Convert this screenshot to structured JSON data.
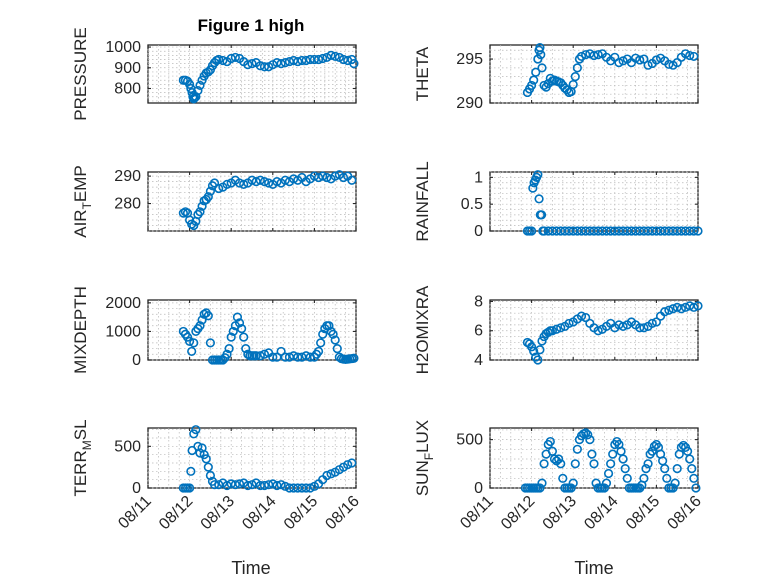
{
  "figure": {
    "title": "Figure 1 high"
  },
  "chart_data": [
    {
      "type": "scatter",
      "ylabel": {
        "main": "PRESSURE",
        "sub": ""
      },
      "ylim": [
        730,
        1010
      ],
      "yticks": [
        800,
        900,
        1000
      ],
      "xlim": [
        "08/11",
        "08/16"
      ],
      "xticks": [
        "08/11",
        "08/12",
        "08/13",
        "08/14",
        "08/15",
        "08/16"
      ],
      "grid": true,
      "x": [
        11.85,
        11.9,
        11.95,
        12.0,
        12.03,
        12.06,
        12.08,
        12.1,
        12.12,
        12.15,
        12.2,
        12.25,
        12.3,
        12.35,
        12.4,
        12.45,
        12.5,
        12.55,
        12.6,
        12.65,
        12.7,
        12.8,
        12.9,
        13.0,
        13.1,
        13.2,
        13.3,
        13.4,
        13.5,
        13.6,
        13.7,
        13.8,
        13.9,
        14.0,
        14.1,
        14.2,
        14.3,
        14.4,
        14.5,
        14.6,
        14.7,
        14.8,
        14.9,
        15.0,
        15.1,
        15.2,
        15.3,
        15.4,
        15.5,
        15.6,
        15.7,
        15.8,
        15.9,
        15.95
      ],
      "y": [
        840,
        840,
        835,
        820,
        800,
        780,
        760,
        750,
        755,
        760,
        790,
        815,
        840,
        860,
        875,
        880,
        890,
        910,
        925,
        935,
        940,
        935,
        930,
        945,
        950,
        945,
        930,
        915,
        920,
        925,
        910,
        905,
        905,
        915,
        925,
        920,
        925,
        930,
        935,
        930,
        935,
        935,
        940,
        940,
        940,
        945,
        950,
        960,
        955,
        950,
        940,
        935,
        940,
        920
      ]
    },
    {
      "type": "scatter",
      "ylabel": {
        "main": "THETA",
        "sub": ""
      },
      "ylim": [
        290,
        296.6
      ],
      "yticks": [
        290,
        295
      ],
      "xlim": [
        "08/11",
        "08/16"
      ],
      "xticks": [
        "08/11",
        "08/12",
        "08/13",
        "08/14",
        "08/15",
        "08/16"
      ],
      "grid": true,
      "x": [
        11.9,
        11.95,
        12.0,
        12.05,
        12.1,
        12.15,
        12.18,
        12.2,
        12.22,
        12.25,
        12.3,
        12.35,
        12.4,
        12.45,
        12.5,
        12.55,
        12.6,
        12.65,
        12.7,
        12.75,
        12.8,
        12.85,
        12.9,
        12.95,
        13.0,
        13.05,
        13.1,
        13.15,
        13.2,
        13.3,
        13.4,
        13.5,
        13.6,
        13.7,
        13.8,
        13.9,
        14.0,
        14.1,
        14.2,
        14.3,
        14.4,
        14.5,
        14.6,
        14.7,
        14.8,
        14.9,
        15.0,
        15.1,
        15.2,
        15.3,
        15.4,
        15.5,
        15.6,
        15.7,
        15.8,
        15.9
      ],
      "y": [
        291.2,
        291.6,
        292,
        292.6,
        293.5,
        295,
        296,
        296.3,
        295.5,
        294,
        292,
        291.8,
        292.2,
        292.8,
        292.5,
        292.6,
        292.5,
        292.4,
        292.3,
        292,
        291.7,
        291.5,
        291.2,
        291.3,
        292.1,
        293,
        294,
        295,
        295.3,
        295.5,
        295.6,
        295.4,
        295.5,
        295.6,
        295.2,
        294.8,
        295.2,
        294.6,
        294.8,
        295,
        294.6,
        295.1,
        294.9,
        295,
        294.3,
        294.5,
        294.9,
        295.1,
        294.8,
        294.4,
        294.3,
        294.6,
        295.2,
        295.6,
        295.4,
        295.3
      ]
    },
    {
      "type": "scatter",
      "ylabel": {
        "main": "AIR",
        "sub": "T",
        "tail": "EMP"
      },
      "ylim": [
        270,
        291.5
      ],
      "yticks": [
        280,
        290
      ],
      "xlim": [
        "08/11",
        "08/16"
      ],
      "xticks": [
        "08/11",
        "08/12",
        "08/13",
        "08/14",
        "08/15",
        "08/16"
      ],
      "grid": true,
      "x": [
        11.85,
        11.9,
        11.95,
        12.0,
        12.05,
        12.1,
        12.15,
        12.2,
        12.25,
        12.3,
        12.35,
        12.4,
        12.45,
        12.5,
        12.55,
        12.6,
        12.7,
        12.8,
        12.9,
        13.0,
        13.1,
        13.2,
        13.3,
        13.4,
        13.5,
        13.6,
        13.7,
        13.8,
        13.9,
        14.0,
        14.1,
        14.2,
        14.3,
        14.4,
        14.5,
        14.6,
        14.7,
        14.8,
        14.9,
        15.0,
        15.1,
        15.2,
        15.3,
        15.4,
        15.5,
        15.6,
        15.7,
        15.8,
        15.9
      ],
      "y": [
        276.5,
        277,
        276.5,
        274,
        272.5,
        272,
        273.5,
        276,
        277,
        279,
        281,
        281.5,
        282.5,
        284.5,
        286.5,
        287.5,
        285.5,
        286,
        287,
        287.5,
        288.5,
        287.5,
        287,
        287.5,
        288.5,
        288,
        288.5,
        288,
        287.5,
        287,
        288,
        287.5,
        288.5,
        288,
        289,
        288.5,
        289.5,
        288,
        289,
        290,
        289.5,
        290,
        289.5,
        289,
        290,
        290.5,
        289.5,
        290,
        288.5
      ]
    },
    {
      "type": "scatter",
      "ylabel": {
        "main": "RAINFALL",
        "sub": ""
      },
      "ylim": [
        0,
        1.1
      ],
      "yticks": [
        0,
        0.5,
        1
      ],
      "xlim": [
        "08/11",
        "08/16"
      ],
      "xticks": [
        "08/11",
        "08/12",
        "08/13",
        "08/14",
        "08/15",
        "08/16"
      ],
      "grid": true,
      "x": [
        11.9,
        11.95,
        12.0,
        12.03,
        12.06,
        12.09,
        12.12,
        12.15,
        12.18,
        12.21,
        12.24,
        12.27,
        12.3,
        12.4,
        12.5,
        12.6,
        12.7,
        12.8,
        12.9,
        13.0,
        13.1,
        13.2,
        13.3,
        13.4,
        13.5,
        13.6,
        13.7,
        13.8,
        13.9,
        14.0,
        14.1,
        14.2,
        14.3,
        14.4,
        14.5,
        14.6,
        14.7,
        14.8,
        14.9,
        15.0,
        15.1,
        15.2,
        15.3,
        15.4,
        15.5,
        15.6,
        15.7,
        15.8,
        15.9,
        16.0
      ],
      "y": [
        0,
        0,
        0,
        0.8,
        0.9,
        0.95,
        1.0,
        1.05,
        0.6,
        0.3,
        0.3,
        0,
        0,
        0,
        0,
        0,
        0,
        0,
        0,
        0,
        0,
        0,
        0,
        0,
        0,
        0,
        0,
        0,
        0,
        0,
        0,
        0,
        0,
        0,
        0,
        0,
        0,
        0,
        0,
        0,
        0,
        0,
        0,
        0,
        0,
        0,
        0,
        0,
        0,
        0
      ]
    },
    {
      "type": "scatter",
      "ylabel": {
        "main": "MIXDEPTH",
        "sub": ""
      },
      "ylim": [
        0,
        2100
      ],
      "yticks": [
        0,
        1000,
        2000
      ],
      "xlim": [
        "08/11",
        "08/16"
      ],
      "xticks": [
        "08/11",
        "08/12",
        "08/13",
        "08/14",
        "08/15",
        "08/16"
      ],
      "grid": true,
      "x": [
        11.85,
        11.9,
        11.95,
        12.0,
        12.05,
        12.1,
        12.15,
        12.2,
        12.25,
        12.3,
        12.35,
        12.4,
        12.45,
        12.5,
        12.55,
        12.6,
        12.65,
        12.7,
        12.75,
        12.8,
        12.85,
        12.9,
        12.95,
        13.0,
        13.05,
        13.1,
        13.15,
        13.2,
        13.25,
        13.3,
        13.35,
        13.4,
        13.45,
        13.5,
        13.55,
        13.6,
        13.7,
        13.8,
        13.9,
        14.0,
        14.1,
        14.2,
        14.3,
        14.4,
        14.5,
        14.6,
        14.7,
        14.8,
        14.9,
        15.0,
        15.05,
        15.1,
        15.15,
        15.2,
        15.25,
        15.3,
        15.35,
        15.4,
        15.45,
        15.5,
        15.55,
        15.6,
        15.65,
        15.7,
        15.75,
        15.8,
        15.85,
        15.9,
        15.95
      ],
      "y": [
        1000,
        900,
        800,
        650,
        300,
        600,
        1000,
        1100,
        1200,
        1400,
        1600,
        1650,
        1550,
        600,
        0,
        0,
        0,
        0,
        0,
        0,
        80,
        200,
        400,
        800,
        1000,
        1200,
        1500,
        1300,
        1100,
        800,
        400,
        200,
        150,
        150,
        150,
        150,
        150,
        200,
        250,
        100,
        100,
        300,
        100,
        100,
        150,
        100,
        100,
        150,
        100,
        100,
        200,
        300,
        600,
        900,
        1100,
        1200,
        1200,
        1000,
        900,
        700,
        400,
        100,
        50,
        30,
        20,
        30,
        40,
        50,
        60
      ]
    },
    {
      "type": "scatter",
      "ylabel": {
        "main": "H2OMIXRA",
        "sub": ""
      },
      "ylim": [
        4,
        8.1
      ],
      "yticks": [
        4,
        6,
        8
      ],
      "xlim": [
        "08/11",
        "08/16"
      ],
      "xticks": [
        "08/11",
        "08/12",
        "08/13",
        "08/14",
        "08/15",
        "08/16"
      ],
      "grid": true,
      "x": [
        11.9,
        11.95,
        12.0,
        12.05,
        12.1,
        12.15,
        12.2,
        12.25,
        12.3,
        12.35,
        12.4,
        12.45,
        12.5,
        12.6,
        12.7,
        12.8,
        12.9,
        13.0,
        13.1,
        13.2,
        13.3,
        13.4,
        13.5,
        13.6,
        13.7,
        13.8,
        13.9,
        14.0,
        14.1,
        14.2,
        14.3,
        14.4,
        14.5,
        14.6,
        14.7,
        14.8,
        14.9,
        15.0,
        15.1,
        15.2,
        15.3,
        15.4,
        15.5,
        15.6,
        15.7,
        15.8,
        15.9,
        16.0
      ],
      "y": [
        5.2,
        5.1,
        4.9,
        4.6,
        4.2,
        4.0,
        4.7,
        5.3,
        5.6,
        5.8,
        5.9,
        6.0,
        6.0,
        6.1,
        6.2,
        6.3,
        6.5,
        6.6,
        6.8,
        7.0,
        6.9,
        6.5,
        6.2,
        6.0,
        6.1,
        6.3,
        6.5,
        6.2,
        6.4,
        6.3,
        6.4,
        6.6,
        6.4,
        6.2,
        6.2,
        6.3,
        6.5,
        6.6,
        7.0,
        7.3,
        7.4,
        7.5,
        7.6,
        7.5,
        7.6,
        7.7,
        7.6,
        7.7
      ]
    },
    {
      "type": "scatter",
      "ylabel": {
        "main": "TERR",
        "sub": "M",
        "tail": "SL"
      },
      "ylim": [
        0,
        720
      ],
      "yticks": [
        0,
        500
      ],
      "xlim": [
        "08/11",
        "08/16"
      ],
      "xticks": [
        "08/11",
        "08/12",
        "08/13",
        "08/14",
        "08/15",
        "08/16"
      ],
      "grid": true,
      "x": [
        11.85,
        11.9,
        11.95,
        12.0,
        12.03,
        12.06,
        12.1,
        12.15,
        12.2,
        12.25,
        12.3,
        12.35,
        12.4,
        12.45,
        12.5,
        12.55,
        12.6,
        12.7,
        12.8,
        12.9,
        13.0,
        13.1,
        13.2,
        13.3,
        13.4,
        13.5,
        13.6,
        13.7,
        13.8,
        13.9,
        14.0,
        14.1,
        14.2,
        14.3,
        14.4,
        14.5,
        14.6,
        14.7,
        14.8,
        14.9,
        15.0,
        15.1,
        15.2,
        15.3,
        15.4,
        15.5,
        15.6,
        15.7,
        15.8,
        15.9
      ],
      "y": [
        0,
        0,
        0,
        0,
        200,
        450,
        650,
        700,
        500,
        420,
        480,
        400,
        350,
        250,
        150,
        80,
        40,
        40,
        60,
        30,
        50,
        40,
        50,
        60,
        30,
        40,
        60,
        30,
        30,
        40,
        50,
        30,
        40,
        20,
        0,
        0,
        0,
        0,
        0,
        0,
        20,
        50,
        100,
        150,
        170,
        190,
        220,
        250,
        280,
        300
      ]
    },
    {
      "type": "scatter",
      "ylabel": {
        "main": "SUN",
        "sub": "F",
        "tail": "LUX"
      },
      "ylim": [
        0,
        620
      ],
      "yticks": [
        0,
        500
      ],
      "xlim": [
        "08/11",
        "08/16"
      ],
      "xticks": [
        "08/11",
        "08/12",
        "08/13",
        "08/14",
        "08/15",
        "08/16"
      ],
      "grid": true,
      "x": [
        11.85,
        11.9,
        11.95,
        12.0,
        12.05,
        12.1,
        12.15,
        12.2,
        12.25,
        12.3,
        12.35,
        12.4,
        12.45,
        12.5,
        12.55,
        12.6,
        12.65,
        12.7,
        12.75,
        12.8,
        12.85,
        12.9,
        12.95,
        13.0,
        13.05,
        13.1,
        13.15,
        13.2,
        13.25,
        13.3,
        13.35,
        13.4,
        13.45,
        13.5,
        13.55,
        13.6,
        13.65,
        13.7,
        13.75,
        13.8,
        13.85,
        13.9,
        13.95,
        14.0,
        14.05,
        14.1,
        14.15,
        14.2,
        14.25,
        14.3,
        14.35,
        14.4,
        14.45,
        14.5,
        14.55,
        14.6,
        14.65,
        14.7,
        14.75,
        14.8,
        14.85,
        14.9,
        14.95,
        15.0,
        15.05,
        15.1,
        15.15,
        15.2,
        15.25,
        15.3,
        15.35,
        15.4,
        15.45,
        15.5,
        15.55,
        15.6,
        15.65,
        15.7,
        15.75,
        15.8,
        15.85,
        15.9,
        15.95
      ],
      "y": [
        0,
        0,
        0,
        0,
        0,
        0,
        0,
        0,
        50,
        250,
        350,
        450,
        480,
        380,
        300,
        280,
        300,
        250,
        100,
        0,
        0,
        0,
        0,
        50,
        250,
        400,
        500,
        540,
        560,
        570,
        550,
        500,
        350,
        250,
        50,
        0,
        0,
        0,
        0,
        50,
        150,
        250,
        350,
        450,
        480,
        450,
        380,
        300,
        200,
        100,
        0,
        0,
        0,
        0,
        0,
        0,
        30,
        100,
        200,
        250,
        350,
        380,
        430,
        450,
        420,
        350,
        280,
        200,
        100,
        0,
        0,
        0,
        50,
        200,
        350,
        420,
        440,
        420,
        380,
        300,
        200,
        100,
        0
      ]
    }
  ],
  "xlabel": "Time"
}
